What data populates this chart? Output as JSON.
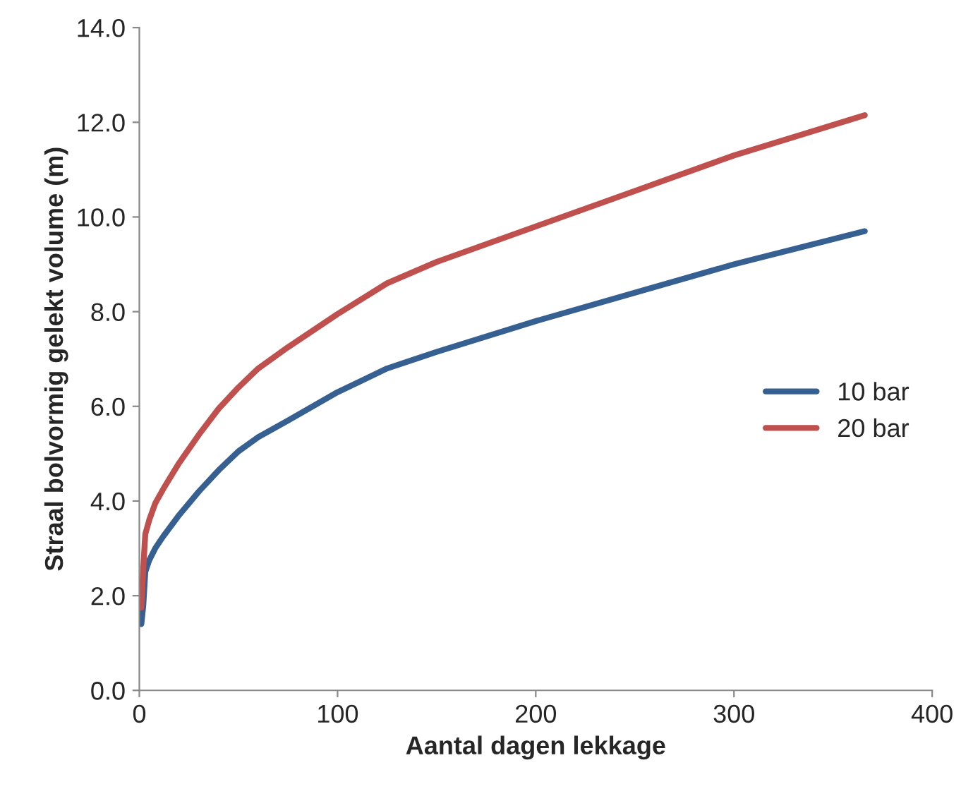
{
  "chart_data": {
    "type": "line",
    "xlabel": "Aantal dagen lekkage",
    "ylabel": "Straal bolvormig gelekt volume (m)",
    "xlim": [
      0,
      400
    ],
    "xticks": [
      0,
      100,
      200,
      300,
      400
    ],
    "ylim": [
      0,
      14
    ],
    "yticks": [
      {
        "value": 0,
        "label": "0.0"
      },
      {
        "value": 2,
        "label": "2.0"
      },
      {
        "value": 4,
        "label": "4.0"
      },
      {
        "value": 6,
        "label": "6.0"
      },
      {
        "value": 8,
        "label": "8.0"
      },
      {
        "value": 10,
        "label": "10.0"
      },
      {
        "value": 12,
        "label": "12.0"
      },
      {
        "value": 14,
        "label": "14.0"
      }
    ],
    "grid": false,
    "legend": "right",
    "marker": "none",
    "line_style": "solid",
    "series": [
      {
        "name": "10 bar",
        "color": "#376092",
        "x": [
          1,
          2,
          3,
          5,
          8,
          12,
          20,
          30,
          40,
          50,
          60,
          75,
          100,
          125,
          150,
          200,
          250,
          300,
          366
        ],
        "values": [
          1.4,
          1.8,
          2.5,
          2.75,
          3.0,
          3.25,
          3.7,
          4.2,
          4.65,
          5.05,
          5.35,
          5.7,
          6.3,
          6.8,
          7.15,
          7.8,
          8.4,
          9.0,
          9.7
        ]
      },
      {
        "name": "20 bar",
        "color": "#c0504d",
        "x": [
          1,
          2,
          3,
          5,
          8,
          12,
          20,
          30,
          40,
          50,
          60,
          75,
          100,
          125,
          150,
          200,
          250,
          300,
          366
        ],
        "values": [
          1.75,
          2.6,
          3.3,
          3.6,
          3.95,
          4.25,
          4.8,
          5.4,
          5.95,
          6.4,
          6.8,
          7.25,
          7.95,
          8.6,
          9.05,
          9.8,
          10.55,
          11.3,
          12.15
        ]
      }
    ]
  }
}
